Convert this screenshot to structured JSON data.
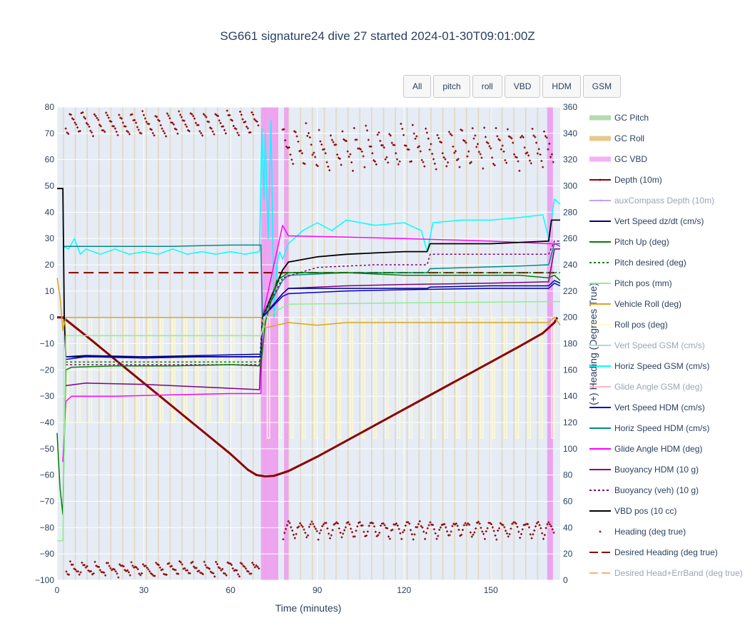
{
  "title": "SG661 signature24 dive 27 started 2024-01-30T09:01:00Z",
  "buttons": [
    "All",
    "pitch",
    "roll",
    "VBD",
    "HDM",
    "GSM"
  ],
  "colors": {
    "plot_bg": "#e5ecf6",
    "grid": "#ffffff",
    "gc_vbd_band": "#ee99ee",
    "gc_roll_band": "#e3c48d"
  },
  "chart_data": {
    "type": "line",
    "xlabel": "Time (minutes)",
    "ylabel_right": "(+) Heading (Degrees True)",
    "xlim": [
      0,
      174
    ],
    "ylim_left": [
      -100,
      80
    ],
    "ylim_right": [
      0,
      360
    ],
    "x_ticks": [
      0,
      30,
      60,
      90,
      120,
      150
    ],
    "y_ticks_left": [
      80,
      70,
      60,
      50,
      40,
      30,
      20,
      10,
      0,
      -10,
      -20,
      -30,
      -40,
      -50,
      -60,
      -70,
      -80,
      -90,
      -100
    ],
    "y_ticks_right": [
      360,
      340,
      320,
      300,
      280,
      260,
      240,
      220,
      200,
      180,
      160,
      140,
      120,
      100,
      80,
      60,
      40,
      20,
      0
    ],
    "grid": true,
    "legend_position": "right",
    "gc_vbd_intervals": [
      [
        70.5,
        76.5
      ],
      [
        78.5,
        80
      ],
      [
        169.5,
        171.5
      ]
    ],
    "legend": [
      {
        "name": "GC Pitch",
        "color": "#b5dbb0",
        "style": "band"
      },
      {
        "name": "GC Roll",
        "color": "#e8c98d",
        "style": "band"
      },
      {
        "name": "GC VBD",
        "color": "#f6b0f6",
        "style": "band"
      },
      {
        "name": "Depth (10m)",
        "color": "#8b0000",
        "style": "line-marker"
      },
      {
        "name": "auxCompass Depth (10m)",
        "color": "#c9a0e8",
        "style": "line-marker",
        "muted": true
      },
      {
        "name": "Vert Speed dz/dt (cm/s)",
        "color": "#00008b",
        "style": "line"
      },
      {
        "name": "Pitch Up (deg)",
        "color": "#008000",
        "style": "line"
      },
      {
        "name": "Pitch desired (deg)",
        "color": "#008000",
        "style": "dot"
      },
      {
        "name": "Pitch pos (mm)",
        "color": "#90ee90",
        "style": "line"
      },
      {
        "name": "Vehicle Roll (deg)",
        "color": "#daa520",
        "style": "line"
      },
      {
        "name": "Roll pos (deg)",
        "color": "#fffacd",
        "style": "line"
      },
      {
        "name": "Vert Speed GSM (cm/s)",
        "color": "#add8e6",
        "style": "line",
        "muted": true
      },
      {
        "name": "Horiz Speed GSM (cm/s)",
        "color": "#00ffff",
        "style": "line"
      },
      {
        "name": "Glide Angle GSM (deg)",
        "color": "#ffb6c1",
        "style": "line",
        "muted": true
      },
      {
        "name": "Vert Speed HDM (cm/s)",
        "color": "#0000cd",
        "style": "line"
      },
      {
        "name": "Horiz Speed HDM (cm/s)",
        "color": "#008b8b",
        "style": "line"
      },
      {
        "name": "Glide Angle HDM (deg)",
        "color": "#ff00ff",
        "style": "line"
      },
      {
        "name": "Buoyancy HDM (10 g)",
        "color": "#800080",
        "style": "line"
      },
      {
        "name": "Buoyancy (veh) (10 g)",
        "color": "#800080",
        "style": "dot"
      },
      {
        "name": "VBD pos (10 cc)",
        "color": "#000000",
        "style": "line"
      },
      {
        "name": "Heading (deg true)",
        "color": "#8b0000",
        "style": "marker"
      },
      {
        "name": "Desired Heading (deg true)",
        "color": "#8b0000",
        "style": "dash"
      },
      {
        "name": "Desired Head+ErrBand (deg true)",
        "color": "#f4b183",
        "style": "dash",
        "muted": true
      }
    ],
    "series": [
      {
        "name": "Depth (10m)",
        "axis": "left",
        "color": "#8b0000",
        "width": 3,
        "points": [
          [
            0,
            0
          ],
          [
            2,
            0
          ],
          [
            10,
            -7
          ],
          [
            20,
            -16
          ],
          [
            30,
            -25
          ],
          [
            40,
            -34
          ],
          [
            50,
            -43
          ],
          [
            60,
            -52
          ],
          [
            66,
            -58
          ],
          [
            69,
            -60
          ],
          [
            72,
            -60.5
          ],
          [
            75,
            -60.3
          ],
          [
            80,
            -58.5
          ],
          [
            90,
            -53
          ],
          [
            100,
            -47
          ],
          [
            110,
            -41
          ],
          [
            120,
            -35
          ],
          [
            130,
            -29
          ],
          [
            140,
            -23
          ],
          [
            150,
            -17
          ],
          [
            160,
            -11
          ],
          [
            168,
            -6
          ],
          [
            172,
            -2
          ],
          [
            173,
            0
          ]
        ]
      },
      {
        "name": "Desired Heading (deg true)",
        "axis": "right",
        "color": "#8b0000",
        "width": 2,
        "dash": "14,7",
        "points": [
          [
            4,
            234
          ],
          [
            172,
            234
          ]
        ]
      },
      {
        "name": "Horiz Speed GSM (cm/s)",
        "axis": "left",
        "color": "#00ffff",
        "width": 1.5,
        "points": [
          [
            2,
            27
          ],
          [
            4,
            26
          ],
          [
            6,
            30
          ],
          [
            8,
            24
          ],
          [
            10,
            26
          ],
          [
            15,
            24
          ],
          [
            20,
            26
          ],
          [
            25,
            24
          ],
          [
            30,
            25
          ],
          [
            35,
            24
          ],
          [
            40,
            26
          ],
          [
            45,
            24
          ],
          [
            50,
            25
          ],
          [
            55,
            24
          ],
          [
            60,
            25
          ],
          [
            65,
            24
          ],
          [
            70,
            25
          ],
          [
            70.8,
            72
          ],
          [
            71.5,
            45
          ],
          [
            72,
            70
          ],
          [
            73,
            30
          ],
          [
            74,
            75
          ],
          [
            75,
            0
          ],
          [
            76,
            20
          ],
          [
            77,
            25
          ],
          [
            78,
            22
          ],
          [
            80,
            28
          ],
          [
            85,
            33
          ],
          [
            90,
            36
          ],
          [
            95,
            33
          ],
          [
            100,
            37
          ],
          [
            110,
            35
          ],
          [
            120,
            36
          ],
          [
            126,
            33
          ],
          [
            128,
            25
          ],
          [
            130,
            36
          ],
          [
            140,
            37
          ],
          [
            150,
            37
          ],
          [
            160,
            38
          ],
          [
            168,
            39
          ],
          [
            170,
            30
          ],
          [
            172,
            45
          ],
          [
            174,
            43
          ]
        ]
      },
      {
        "name": "Horiz Speed HDM (cm/s)",
        "axis": "left",
        "color": "#008b8b",
        "width": 1.5,
        "points": [
          [
            2,
            27
          ],
          [
            20,
            27
          ],
          [
            40,
            27
          ],
          [
            60,
            27.5
          ],
          [
            70.5,
            27.5
          ],
          [
            71,
            0
          ],
          [
            78,
            14
          ],
          [
            80,
            16
          ],
          [
            100,
            17
          ],
          [
            128,
            17
          ],
          [
            129,
            18.5
          ],
          [
            160,
            19.5
          ],
          [
            170,
            20
          ],
          [
            172,
            28
          ],
          [
            174,
            28
          ]
        ]
      },
      {
        "name": "Glide Angle HDM (deg)",
        "axis": "left",
        "color": "#ff00ff",
        "width": 1.5,
        "points": [
          [
            2,
            -55
          ],
          [
            3,
            -32
          ],
          [
            5,
            -30
          ],
          [
            20,
            -30
          ],
          [
            40,
            -29.5
          ],
          [
            60,
            -29
          ],
          [
            70.5,
            -29
          ],
          [
            71,
            0
          ],
          [
            78,
            35
          ],
          [
            80,
            31
          ],
          [
            100,
            30.5
          ],
          [
            120,
            30
          ],
          [
            150,
            29
          ],
          [
            170,
            28
          ],
          [
            172,
            28
          ],
          [
            174,
            27
          ]
        ]
      },
      {
        "name": "Buoyancy HDM (10 g)",
        "axis": "left",
        "color": "#800080",
        "width": 1.5,
        "points": [
          [
            3,
            -26
          ],
          [
            10,
            -25
          ],
          [
            30,
            -25.5
          ],
          [
            50,
            -26.5
          ],
          [
            70,
            -27.5
          ],
          [
            71,
            0
          ],
          [
            78,
            9
          ],
          [
            80,
            11
          ],
          [
            100,
            12
          ],
          [
            120,
            12.5
          ],
          [
            150,
            13
          ],
          [
            170,
            13.5
          ],
          [
            172,
            26
          ],
          [
            174,
            26
          ]
        ]
      },
      {
        "name": "Buoyancy (veh) (10 g)",
        "axis": "left",
        "color": "#800080",
        "width": 1.5,
        "dash": "3,3",
        "points": [
          [
            3,
            -18
          ],
          [
            70,
            -18
          ],
          [
            71,
            0
          ],
          [
            78,
            15
          ],
          [
            90,
            19
          ],
          [
            110,
            20
          ],
          [
            128,
            20
          ],
          [
            129,
            24
          ],
          [
            150,
            24
          ],
          [
            170,
            24
          ],
          [
            172,
            29
          ],
          [
            174,
            29
          ]
        ]
      },
      {
        "name": "VBD pos (10 cc)",
        "axis": "left",
        "color": "#000000",
        "width": 1.8,
        "points": [
          [
            0,
            49
          ],
          [
            2,
            49
          ],
          [
            2.5,
            0
          ],
          [
            3,
            -15
          ],
          [
            40,
            -15
          ],
          [
            70.5,
            -15
          ],
          [
            71,
            0
          ],
          [
            78,
            18
          ],
          [
            80,
            21
          ],
          [
            90,
            23
          ],
          [
            100,
            24
          ],
          [
            110,
            24.5
          ],
          [
            120,
            25
          ],
          [
            128,
            25
          ],
          [
            129,
            28
          ],
          [
            150,
            28
          ],
          [
            170,
            29
          ],
          [
            171,
            37
          ],
          [
            174,
            37
          ]
        ]
      },
      {
        "name": "Vert Speed dz/dt (cm/s)",
        "axis": "left",
        "color": "#00008b",
        "width": 1.5,
        "points": [
          [
            3,
            -15
          ],
          [
            10,
            -14.5
          ],
          [
            30,
            -15
          ],
          [
            50,
            -14.5
          ],
          [
            70.5,
            -14
          ],
          [
            71,
            0
          ],
          [
            78,
            9
          ],
          [
            80,
            11
          ],
          [
            100,
            11
          ],
          [
            128,
            11
          ],
          [
            129,
            11.5
          ],
          [
            150,
            12
          ],
          [
            170,
            12
          ],
          [
            172,
            14
          ],
          [
            174,
            13
          ]
        ]
      },
      {
        "name": "Vert Speed HDM (cm/s)",
        "axis": "left",
        "color": "#0000cd",
        "width": 1.5,
        "points": [
          [
            3,
            -16
          ],
          [
            10,
            -15
          ],
          [
            30,
            -15.5
          ],
          [
            50,
            -15
          ],
          [
            70.5,
            -15
          ],
          [
            71,
            0
          ],
          [
            78,
            8
          ],
          [
            80,
            9
          ],
          [
            100,
            10
          ],
          [
            120,
            10.5
          ],
          [
            150,
            11
          ],
          [
            170,
            11
          ],
          [
            172,
            13
          ],
          [
            174,
            12
          ]
        ]
      },
      {
        "name": "Pitch Up (deg)",
        "axis": "left",
        "color": "#008000",
        "width": 1.5,
        "points": [
          [
            0,
            -44
          ],
          [
            1,
            -65
          ],
          [
            2,
            -75
          ],
          [
            3,
            -20
          ],
          [
            5,
            -19
          ],
          [
            20,
            -18.5
          ],
          [
            40,
            -18.5
          ],
          [
            60,
            -18
          ],
          [
            70.5,
            -18.5
          ],
          [
            72,
            -2
          ],
          [
            76,
            14
          ],
          [
            80,
            17
          ],
          [
            100,
            17
          ],
          [
            120,
            16
          ],
          [
            140,
            16
          ],
          [
            150,
            16
          ],
          [
            160,
            16
          ],
          [
            170,
            15
          ],
          [
            172,
            16
          ],
          [
            174,
            14
          ]
        ]
      },
      {
        "name": "Pitch desired (deg)",
        "axis": "left",
        "color": "#008000",
        "width": 1.5,
        "dash": "3,3",
        "points": [
          [
            3,
            -17
          ],
          [
            70.5,
            -17
          ],
          [
            71,
            0
          ],
          [
            78,
            17
          ],
          [
            174,
            17
          ]
        ]
      },
      {
        "name": "Pitch pos (mm)",
        "axis": "left",
        "color": "#90ee90",
        "width": 1.5,
        "points": [
          [
            0,
            -85
          ],
          [
            2,
            -85
          ],
          [
            3,
            -7
          ],
          [
            70.5,
            -7
          ],
          [
            72,
            0
          ],
          [
            80,
            5
          ],
          [
            120,
            5.5
          ],
          [
            174,
            6
          ]
        ]
      },
      {
        "name": "Vehicle Roll (deg)",
        "axis": "left",
        "color": "#daa520",
        "width": 1.5,
        "points": [
          [
            0,
            15
          ],
          [
            1,
            8
          ],
          [
            2,
            -5
          ],
          [
            3,
            0
          ],
          [
            40,
            0
          ],
          [
            70.5,
            0
          ],
          [
            72,
            -4
          ],
          [
            80,
            -2
          ],
          [
            90,
            -3
          ],
          [
            100,
            -2
          ],
          [
            120,
            -2
          ],
          [
            150,
            -2
          ],
          [
            170,
            -2
          ],
          [
            172,
            0
          ],
          [
            174,
            -3
          ]
        ]
      }
    ]
  }
}
